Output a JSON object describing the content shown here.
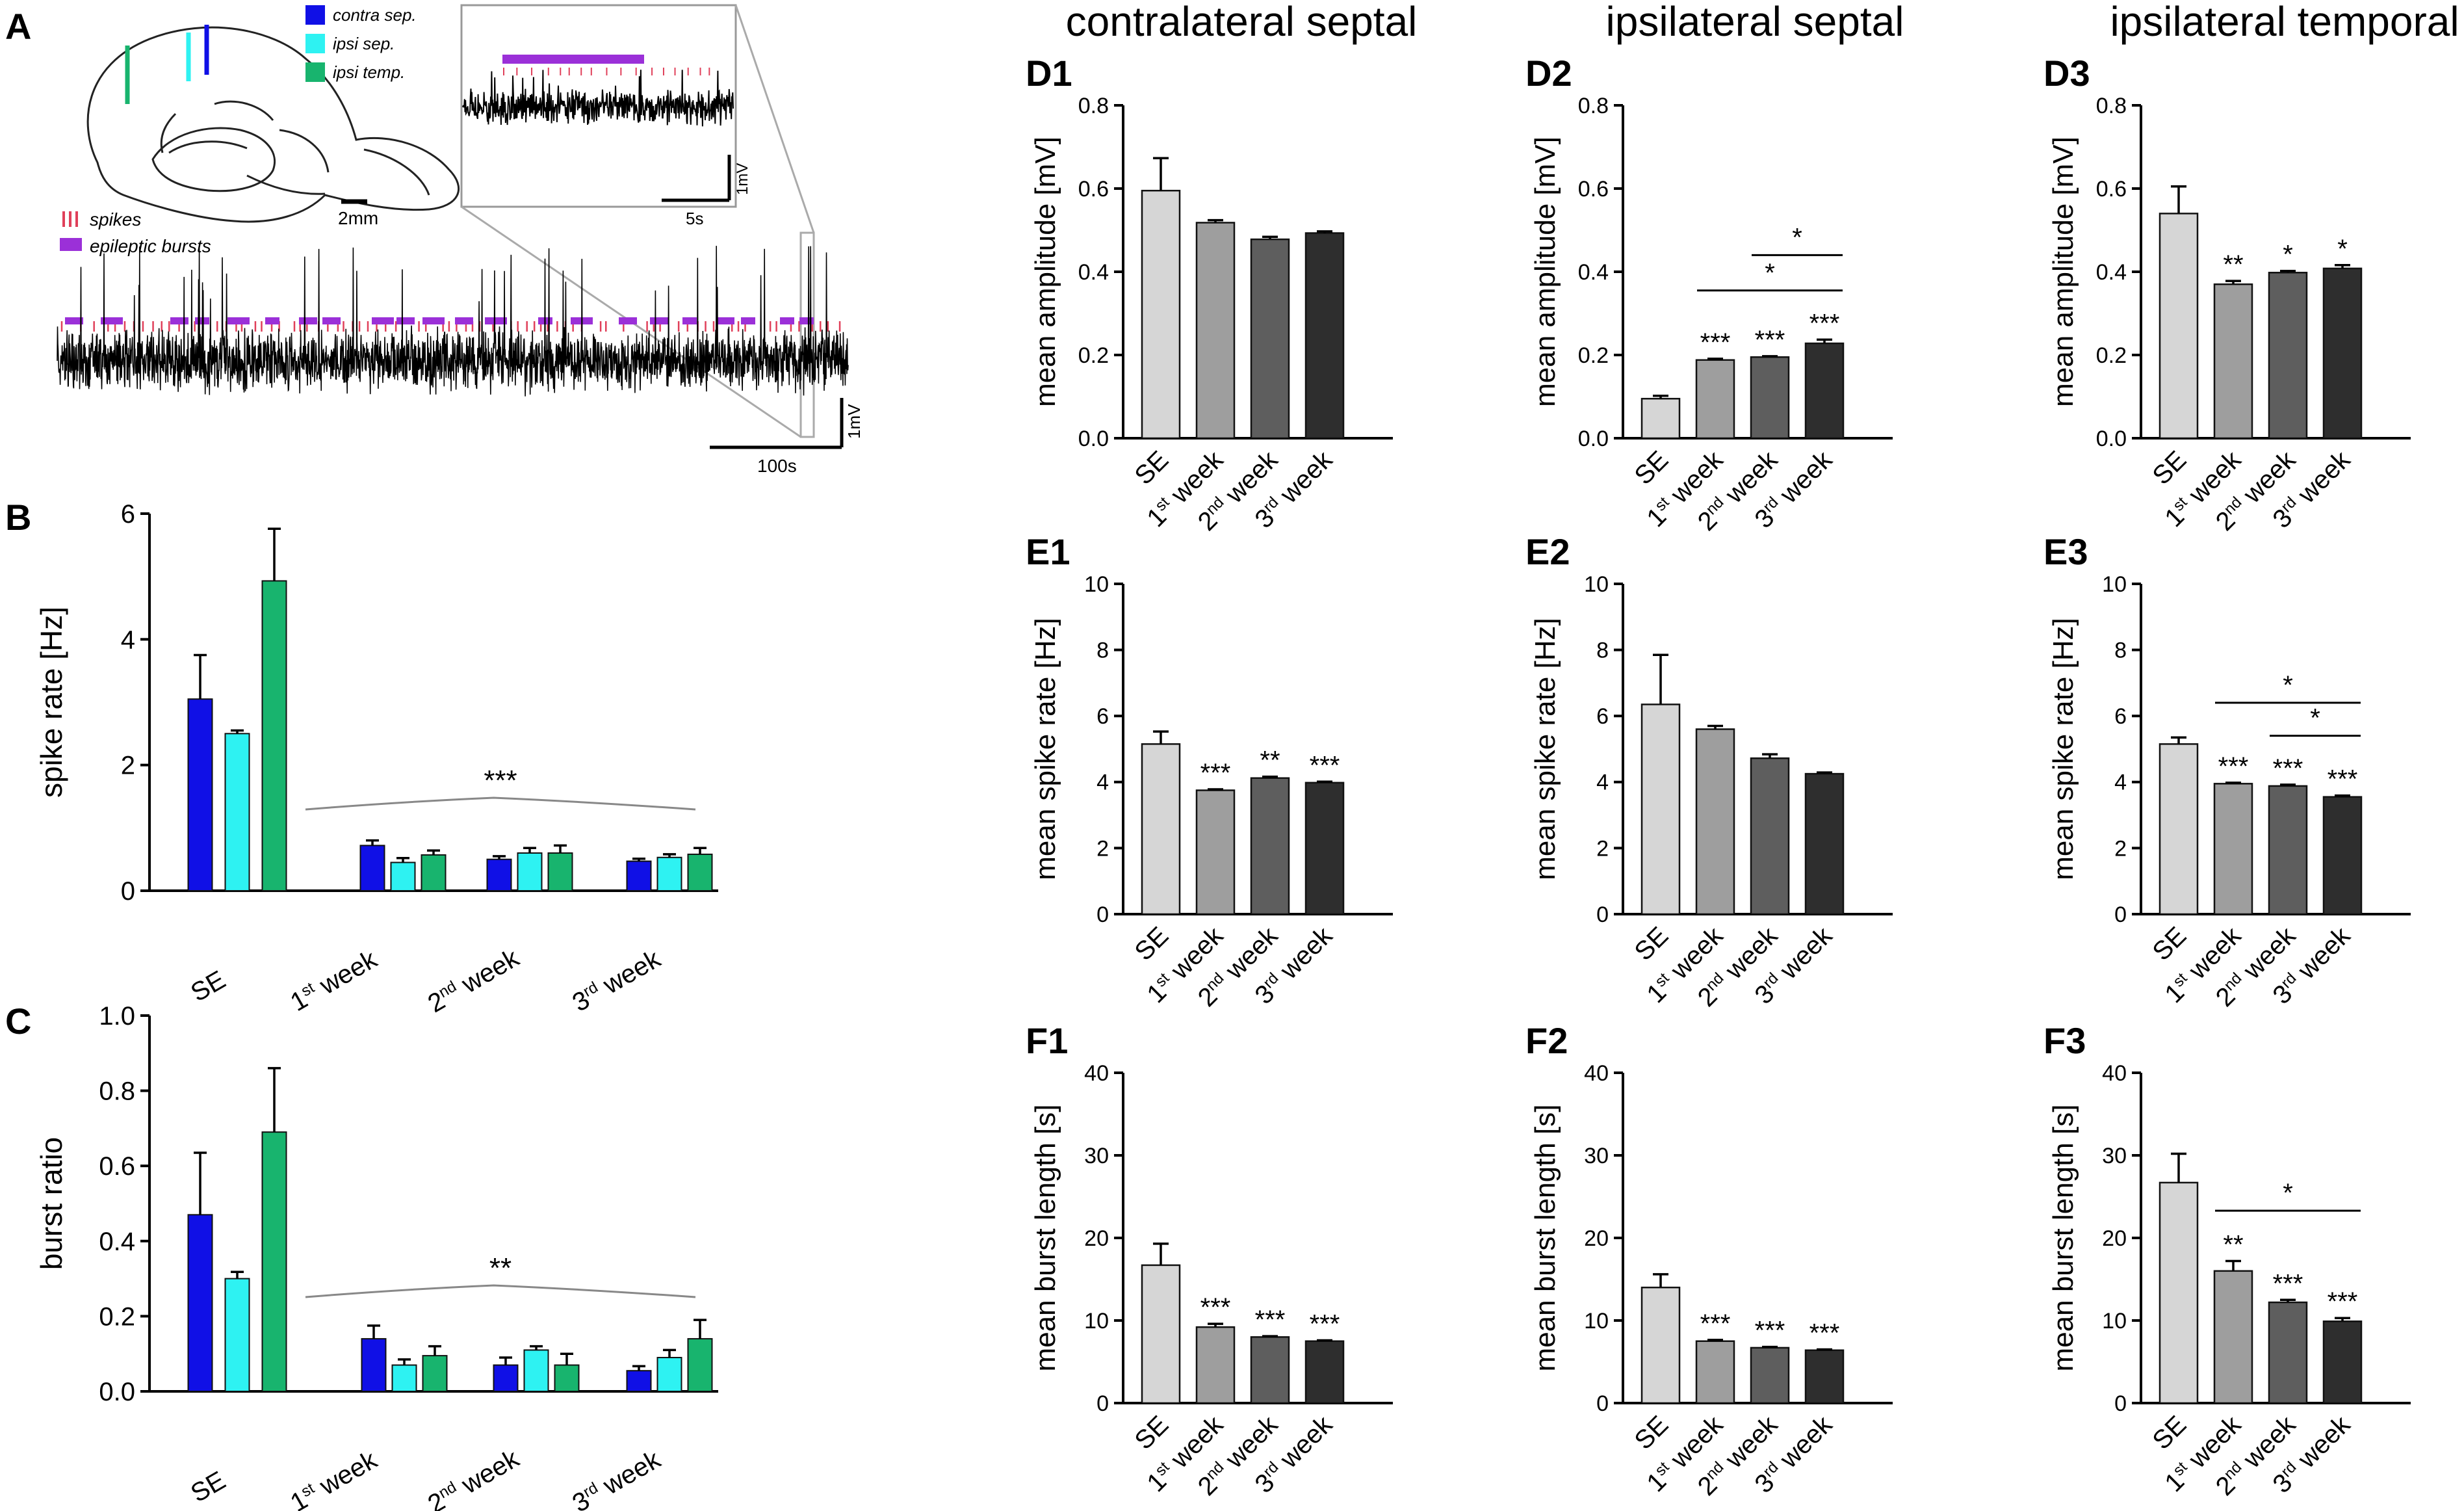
{
  "colors": {
    "contra": "#1010e6",
    "ipsi_sep": "#2ef2f2",
    "ipsi_temp": "#18b46e",
    "spikes": "#e0405a",
    "bursts": "#9b30d8",
    "SE": "#d6d6d6",
    "w1": "#9e9e9e",
    "w2": "#5e5e5e",
    "w3": "#2e2e2e",
    "trace": "#000000"
  },
  "panel_a": {
    "label": "A",
    "legend": {
      "contra": "contra sep.",
      "ipsi_sep": "ipsi sep.",
      "ipsi_temp": "ipsi temp."
    },
    "brain_scale": "2mm",
    "trace_legend": {
      "spikes": "spikes",
      "bursts": "epileptic bursts"
    },
    "inset_scale_time": "5s",
    "inset_scale_volt": "1mV",
    "main_scale_time": "100s",
    "main_scale_volt": "1mV"
  },
  "column_titles": [
    "contralateral septal",
    "ipsilateral septal",
    "ipsilateral temporal"
  ],
  "week_labels": [
    {
      "n": "1",
      "sup": "st",
      "rest": " week"
    },
    {
      "n": "2",
      "sup": "nd",
      "rest": " week"
    },
    {
      "n": "3",
      "sup": "rd",
      "rest": " week"
    }
  ],
  "chart_data": [
    {
      "id": "B",
      "panel_label": "B",
      "type": "bar",
      "ylabel": "spike rate [Hz]",
      "ylim": [
        0,
        6
      ],
      "yticks": [
        "0",
        "2",
        "4",
        "6"
      ],
      "categories": [
        "SE",
        "1st week",
        "2nd week",
        "3rd week"
      ],
      "series": [
        {
          "name": "contra sep.",
          "color_key": "contra",
          "values": [
            3.05,
            0.72,
            0.5,
            0.47
          ],
          "errors": [
            0.7,
            0.08,
            0.05,
            0.04
          ]
        },
        {
          "name": "ipsi sep.",
          "color_key": "ipsi_sep",
          "values": [
            2.5,
            0.45,
            0.6,
            0.53
          ],
          "errors": [
            0.05,
            0.07,
            0.08,
            0.05
          ]
        },
        {
          "name": "ipsi temp.",
          "color_key": "ipsi_temp",
          "values": [
            4.93,
            0.57,
            0.6,
            0.58
          ],
          "errors": [
            0.83,
            0.07,
            0.12,
            0.1
          ]
        }
      ],
      "annotation": "***"
    },
    {
      "id": "C",
      "panel_label": "C",
      "type": "bar",
      "ylabel": "burst ratio",
      "ylim": [
        0,
        1
      ],
      "yticks": [
        "0.0",
        "0.2",
        "0.4",
        "0.6",
        "0.8",
        "1.0"
      ],
      "categories": [
        "SE",
        "1st week",
        "2nd week",
        "3rd week"
      ],
      "series": [
        {
          "name": "contra sep.",
          "color_key": "contra",
          "values": [
            0.47,
            0.14,
            0.07,
            0.055
          ],
          "errors": [
            0.165,
            0.035,
            0.02,
            0.012
          ]
        },
        {
          "name": "ipsi sep.",
          "color_key": "ipsi_sep",
          "values": [
            0.3,
            0.07,
            0.11,
            0.09
          ],
          "errors": [
            0.018,
            0.015,
            0.01,
            0.02
          ]
        },
        {
          "name": "ipsi temp.",
          "color_key": "ipsi_temp",
          "values": [
            0.69,
            0.095,
            0.07,
            0.14
          ],
          "errors": [
            0.17,
            0.025,
            0.03,
            0.05
          ]
        }
      ],
      "annotation": "**"
    },
    {
      "id": "D1",
      "panel_label": "D1",
      "type": "bar",
      "ylabel": "mean amplitude [mV]",
      "ylim": [
        0,
        0.8
      ],
      "yticks": [
        "0.0",
        "0.2",
        "0.4",
        "0.6",
        "0.8"
      ],
      "categories": [
        "SE",
        "1st week",
        "2nd week",
        "3rd week"
      ],
      "values": [
        0.595,
        0.518,
        0.478,
        0.493
      ],
      "errors": [
        0.078,
        0.006,
        0.006,
        0.004
      ],
      "stars": [
        "",
        "",
        "",
        ""
      ],
      "brackets": []
    },
    {
      "id": "D2",
      "panel_label": "D2",
      "type": "bar",
      "ylabel": "mean amplitude [mV]",
      "ylim": [
        0,
        0.8
      ],
      "yticks": [
        "0.0",
        "0.2",
        "0.4",
        "0.6",
        "0.8"
      ],
      "categories": [
        "SE",
        "1st week",
        "2nd week",
        "3rd week"
      ],
      "values": [
        0.095,
        0.188,
        0.195,
        0.228
      ],
      "errors": [
        0.007,
        0.003,
        0.002,
        0.009
      ],
      "stars": [
        "",
        "***",
        "***",
        "***"
      ],
      "brackets": [
        {
          "from": 2,
          "to": 3,
          "y": 0.44,
          "label": "*"
        },
        {
          "from": 1,
          "to": 3,
          "y": 0.355,
          "label": "*"
        }
      ]
    },
    {
      "id": "D3",
      "panel_label": "D3",
      "type": "bar",
      "ylabel": "mean amplitude [mV]",
      "ylim": [
        0,
        0.8
      ],
      "yticks": [
        "0.0",
        "0.2",
        "0.4",
        "0.6",
        "0.8"
      ],
      "categories": [
        "SE",
        "1st week",
        "2nd week",
        "3rd week"
      ],
      "values": [
        0.54,
        0.37,
        0.398,
        0.408
      ],
      "errors": [
        0.065,
        0.008,
        0.004,
        0.008
      ],
      "stars": [
        "",
        "**",
        "*",
        "*"
      ],
      "brackets": []
    },
    {
      "id": "E1",
      "panel_label": "E1",
      "type": "bar",
      "ylabel": "mean spike rate [Hz]",
      "ylim": [
        0,
        10
      ],
      "yticks": [
        "0",
        "2",
        "4",
        "6",
        "8",
        "10"
      ],
      "categories": [
        "SE",
        "1st week",
        "2nd week",
        "3rd week"
      ],
      "values": [
        5.15,
        3.75,
        4.12,
        3.98
      ],
      "errors": [
        0.38,
        0.03,
        0.04,
        0.03
      ],
      "stars": [
        "",
        "***",
        "**",
        "***"
      ],
      "brackets": []
    },
    {
      "id": "E2",
      "panel_label": "E2",
      "type": "bar",
      "ylabel": "mean spike rate [Hz]",
      "ylim": [
        0,
        10
      ],
      "yticks": [
        "0",
        "2",
        "4",
        "6",
        "8",
        "10"
      ],
      "categories": [
        "SE",
        "1st week",
        "2nd week",
        "3rd week"
      ],
      "values": [
        6.35,
        5.6,
        4.72,
        4.25
      ],
      "errors": [
        1.5,
        0.1,
        0.12,
        0.04
      ],
      "stars": [
        "",
        "",
        "",
        ""
      ],
      "brackets": []
    },
    {
      "id": "E3",
      "panel_label": "E3",
      "type": "bar",
      "ylabel": "mean spike rate [Hz]",
      "ylim": [
        0,
        10
      ],
      "yticks": [
        "0",
        "2",
        "4",
        "6",
        "8",
        "10"
      ],
      "categories": [
        "SE",
        "1st week",
        "2nd week",
        "3rd week"
      ],
      "values": [
        5.15,
        3.95,
        3.88,
        3.55
      ],
      "errors": [
        0.2,
        0.03,
        0.04,
        0.04
      ],
      "stars": [
        "",
        "***",
        "***",
        "***"
      ],
      "brackets": [
        {
          "from": 1,
          "to": 3,
          "y": 6.4,
          "label": "*"
        },
        {
          "from": 2,
          "to": 3,
          "y": 5.4,
          "label": "*"
        }
      ]
    },
    {
      "id": "F1",
      "panel_label": "F1",
      "type": "bar",
      "ylabel": "mean burst length [s]",
      "ylim": [
        0,
        40
      ],
      "yticks": [
        "0",
        "10",
        "20",
        "30",
        "40"
      ],
      "categories": [
        "SE",
        "1st week",
        "2nd week",
        "3rd week"
      ],
      "values": [
        16.7,
        9.2,
        8.0,
        7.5
      ],
      "errors": [
        2.6,
        0.4,
        0.1,
        0.1
      ],
      "stars": [
        "",
        "***",
        "***",
        "***"
      ],
      "brackets": []
    },
    {
      "id": "F2",
      "panel_label": "F2",
      "type": "bar",
      "ylabel": "mean burst length [s]",
      "ylim": [
        0,
        40
      ],
      "yticks": [
        "0",
        "10",
        "20",
        "30",
        "40"
      ],
      "categories": [
        "SE",
        "1st week",
        "2nd week",
        "3rd week"
      ],
      "values": [
        14.0,
        7.5,
        6.7,
        6.4
      ],
      "errors": [
        1.6,
        0.15,
        0.1,
        0.1
      ],
      "stars": [
        "",
        "***",
        "***",
        "***"
      ],
      "brackets": []
    },
    {
      "id": "F3",
      "panel_label": "F3",
      "type": "bar",
      "ylabel": "mean burst length [s]",
      "ylim": [
        0,
        40
      ],
      "yticks": [
        "0",
        "10",
        "20",
        "30",
        "40"
      ],
      "categories": [
        "SE",
        "1st week",
        "2nd week",
        "3rd week"
      ],
      "values": [
        26.7,
        16.0,
        12.2,
        9.9
      ],
      "errors": [
        3.5,
        1.2,
        0.3,
        0.4
      ],
      "stars": [
        "",
        "**",
        "***",
        "***"
      ],
      "brackets": [
        {
          "from": 1,
          "to": 3,
          "y": 23.3,
          "label": "*"
        }
      ]
    }
  ]
}
